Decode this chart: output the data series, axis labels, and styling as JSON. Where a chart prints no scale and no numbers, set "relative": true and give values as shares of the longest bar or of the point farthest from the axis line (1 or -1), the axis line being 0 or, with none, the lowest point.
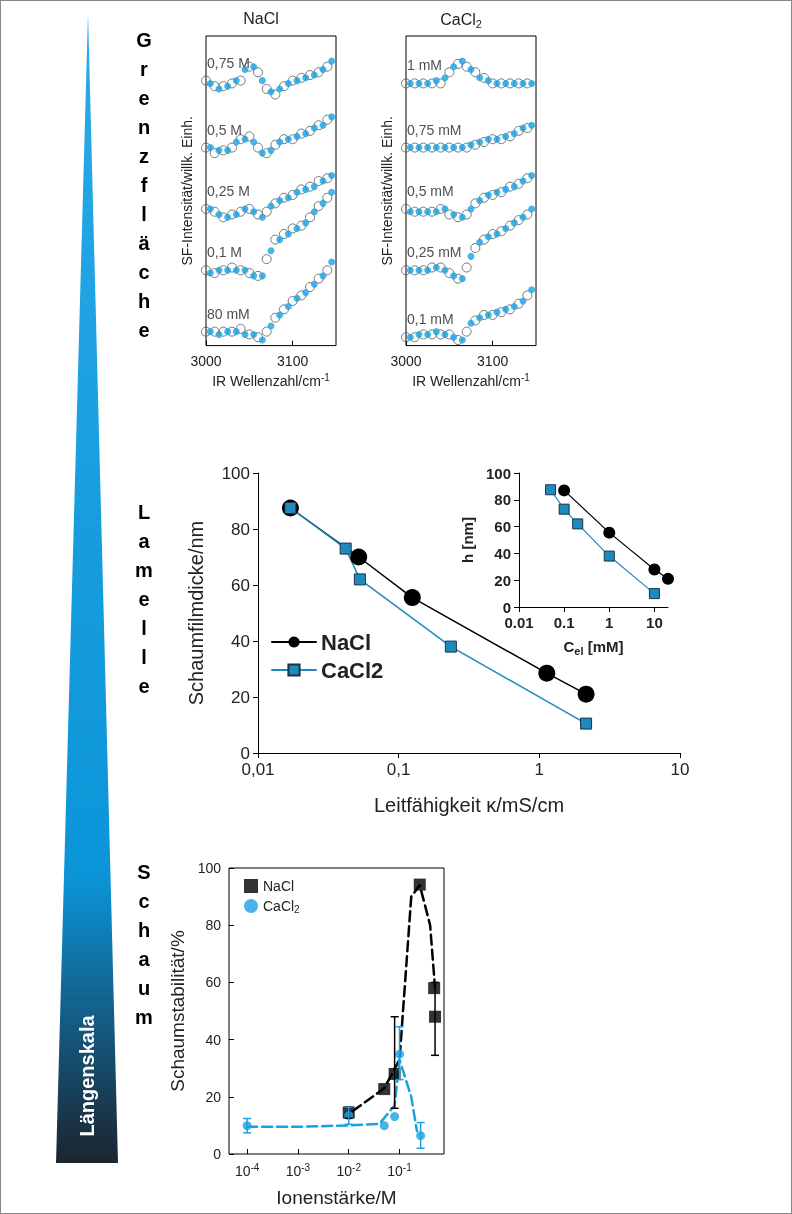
{
  "chart_data": [
    {
      "type": "other",
      "annotations": [
        "Längenskala",
        "Grenzfläche",
        "Lamelle",
        "Schaum"
      ]
    },
    {
      "type": "scatter",
      "relative": true,
      "title": "NaCl",
      "xlabel": "IR Wellenzahl/cm$^{-1}$",
      "ylabel": "SF-Intensität/willk. Einh.",
      "xlim": [
        3000,
        3150
      ],
      "xticks": [
        3000,
        3100
      ],
      "grid": false,
      "x": [
        3005,
        3015,
        3025,
        3035,
        3045,
        3055,
        3065,
        3075,
        3085,
        3095,
        3105,
        3115,
        3125,
        3135,
        3145
      ],
      "series": [
        {
          "name": "0,75 M",
          "color": "#555555",
          "marker": "circle",
          "x": [
            3000,
            3010,
            3020,
            3030,
            3040,
            3050,
            3060,
            3070,
            3080,
            3090,
            3100,
            3110,
            3120,
            3130,
            3140
          ],
          "values": [
            0.93,
            0.91,
            0.91,
            0.92,
            0.93,
            0.98,
            0.96,
            0.9,
            0.88,
            0.91,
            0.93,
            0.94,
            0.95,
            0.96,
            0.98
          ]
        },
        {
          "color": "#1ba1e2",
          "marker": "circle",
          "values": [
            0.92,
            0.9,
            0.91,
            0.93,
            0.97,
            0.98,
            0.93,
            0.89,
            0.9,
            0.92,
            0.93,
            0.94,
            0.95,
            0.97,
            1
          ]
        },
        {
          "name": "0,5 M",
          "color": "#555555",
          "marker": "circle",
          "x": [
            3000,
            3010,
            3020,
            3030,
            3040,
            3050,
            3060,
            3070,
            3080,
            3090,
            3100,
            3110,
            3120,
            3130,
            3140
          ],
          "values": [
            0.69,
            0.67,
            0.68,
            0.69,
            0.72,
            0.73,
            0.69,
            0.67,
            0.7,
            0.72,
            0.72,
            0.74,
            0.75,
            0.77,
            0.79
          ]
        },
        {
          "color": "#1ba1e2",
          "marker": "circle",
          "values": [
            0.69,
            0.68,
            0.68,
            0.71,
            0.72,
            0.71,
            0.67,
            0.68,
            0.71,
            0.72,
            0.73,
            0.74,
            0.76,
            0.77,
            0.8
          ]
        },
        {
          "name": "0,25 M",
          "color": "#555555",
          "marker": "circle",
          "x": [
            3000,
            3010,
            3020,
            3030,
            3040,
            3050,
            3060,
            3070,
            3080,
            3090,
            3100,
            3110,
            3120,
            3130,
            3140
          ],
          "values": [
            0.47,
            0.46,
            0.44,
            0.45,
            0.46,
            0.47,
            0.45,
            0.46,
            0.49,
            0.51,
            0.52,
            0.54,
            0.55,
            0.57,
            0.58
          ]
        },
        {
          "color": "#1ba1e2",
          "marker": "circle",
          "values": [
            0.47,
            0.45,
            0.44,
            0.45,
            0.47,
            0.46,
            0.44,
            0.48,
            0.5,
            0.51,
            0.53,
            0.54,
            0.55,
            0.57,
            0.59
          ]
        },
        {
          "name": "0,1 M",
          "color": "#555555",
          "marker": "circle",
          "x": [
            3000,
            3010,
            3020,
            3030,
            3040,
            3050,
            3060,
            3070,
            3080,
            3090,
            3100,
            3110,
            3120,
            3130,
            3140
          ],
          "values": [
            0.25,
            0.24,
            0.25,
            0.26,
            0.25,
            0.24,
            0.23,
            0.29,
            0.36,
            0.38,
            0.4,
            0.41,
            0.44,
            0.48,
            0.51
          ]
        },
        {
          "color": "#1ba1e2",
          "marker": "circle",
          "values": [
            0.24,
            0.25,
            0.25,
            0.25,
            0.25,
            0.23,
            0.23,
            0.32,
            0.36,
            0.38,
            0.4,
            0.42,
            0.46,
            0.49,
            0.53
          ]
        },
        {
          "name": "80 mM",
          "color": "#555555",
          "marker": "circle",
          "x": [
            3000,
            3010,
            3020,
            3030,
            3040,
            3050,
            3060,
            3070,
            3080,
            3090,
            3100,
            3110,
            3120,
            3130,
            3140
          ],
          "values": [
            0.03,
            0.03,
            0.03,
            0.03,
            0.04,
            0.02,
            0.01,
            0.03,
            0.08,
            0.11,
            0.14,
            0.16,
            0.19,
            0.22,
            0.25
          ]
        },
        {
          "color": "#1ba1e2",
          "marker": "circle",
          "values": [
            0.03,
            0.02,
            0.03,
            0.03,
            0.02,
            0.02,
            0,
            0.05,
            0.09,
            0.12,
            0.15,
            0.17,
            0.2,
            0.23,
            0.28
          ]
        }
      ]
    },
    {
      "type": "scatter",
      "relative": true,
      "title": "CaCl$_{2}$",
      "xlabel": "IR Wellenzahl/cm$^{-1}$",
      "ylabel": "SF-Intensität/willk. Einh.",
      "xlim": [
        3000,
        3150
      ],
      "xticks": [
        3000,
        3100
      ],
      "grid": false,
      "x": [
        3005,
        3015,
        3025,
        3035,
        3045,
        3055,
        3065,
        3075,
        3085,
        3095,
        3105,
        3115,
        3125,
        3135,
        3145
      ],
      "series": [
        {
          "name": "1 mM",
          "color": "#555555",
          "marker": "circle",
          "x": [
            3000,
            3010,
            3020,
            3030,
            3040,
            3050,
            3060,
            3070,
            3080,
            3090,
            3100,
            3110,
            3120,
            3130,
            3140
          ],
          "values": [
            0.92,
            0.92,
            0.92,
            0.92,
            0.92,
            0.96,
            0.99,
            0.98,
            0.96,
            0.94,
            0.92,
            0.92,
            0.92,
            0.92,
            0.92
          ]
        },
        {
          "color": "#1ba1e2",
          "marker": "circle",
          "values": [
            0.92,
            0.92,
            0.92,
            0.93,
            0.94,
            0.98,
            1,
            0.97,
            0.94,
            0.93,
            0.92,
            0.92,
            0.92,
            0.92,
            0.92
          ]
        },
        {
          "name": "0,75 mM",
          "color": "#555555",
          "marker": "circle",
          "x": [
            3000,
            3010,
            3020,
            3030,
            3040,
            3050,
            3060,
            3070,
            3080,
            3090,
            3100,
            3110,
            3120,
            3130,
            3140
          ],
          "values": [
            0.69,
            0.69,
            0.69,
            0.69,
            0.69,
            0.69,
            0.69,
            0.69,
            0.7,
            0.71,
            0.72,
            0.72,
            0.73,
            0.75,
            0.76
          ]
        },
        {
          "color": "#1ba1e2",
          "marker": "circle",
          "values": [
            0.69,
            0.69,
            0.69,
            0.69,
            0.69,
            0.69,
            0.69,
            0.7,
            0.71,
            0.72,
            0.72,
            0.73,
            0.74,
            0.76,
            0.77
          ]
        },
        {
          "name": "0,5 mM",
          "color": "#555555",
          "marker": "circle",
          "x": [
            3000,
            3010,
            3020,
            3030,
            3040,
            3050,
            3060,
            3070,
            3080,
            3090,
            3100,
            3110,
            3120,
            3130,
            3140
          ],
          "values": [
            0.47,
            0.46,
            0.46,
            0.46,
            0.47,
            0.45,
            0.44,
            0.45,
            0.49,
            0.51,
            0.52,
            0.53,
            0.55,
            0.56,
            0.58
          ]
        },
        {
          "color": "#1ba1e2",
          "marker": "circle",
          "values": [
            0.46,
            0.46,
            0.46,
            0.46,
            0.47,
            0.45,
            0.44,
            0.47,
            0.5,
            0.52,
            0.53,
            0.54,
            0.55,
            0.57,
            0.59
          ]
        },
        {
          "name": "0,25 mM",
          "color": "#555555",
          "marker": "circle",
          "x": [
            3000,
            3010,
            3020,
            3030,
            3040,
            3050,
            3060,
            3070,
            3080,
            3090,
            3100,
            3110,
            3120,
            3130,
            3140
          ],
          "values": [
            0.25,
            0.25,
            0.25,
            0.26,
            0.26,
            0.24,
            0.22,
            0.26,
            0.33,
            0.36,
            0.38,
            0.39,
            0.41,
            0.43,
            0.45
          ]
        },
        {
          "color": "#1ba1e2",
          "marker": "circle",
          "values": [
            0.25,
            0.25,
            0.25,
            0.26,
            0.25,
            0.23,
            0.22,
            0.3,
            0.35,
            0.37,
            0.38,
            0.4,
            0.42,
            0.44,
            0.47
          ]
        },
        {
          "name": "0,1 mM",
          "color": "#555555",
          "marker": "circle",
          "x": [
            3000,
            3010,
            3020,
            3030,
            3040,
            3050,
            3060,
            3070,
            3080,
            3090,
            3100,
            3110,
            3120,
            3130,
            3140
          ],
          "values": [
            0.01,
            0.01,
            0.02,
            0.02,
            0.02,
            0.02,
            0,
            0.03,
            0.07,
            0.09,
            0.09,
            0.1,
            0.11,
            0.13,
            0.16
          ]
        },
        {
          "color": "#1ba1e2",
          "marker": "circle",
          "values": [
            0.01,
            0.02,
            0.02,
            0.03,
            0.02,
            0.01,
            0,
            0.06,
            0.08,
            0.09,
            0.1,
            0.11,
            0.12,
            0.14,
            0.18
          ]
        }
      ]
    },
    {
      "type": "line",
      "log": "x",
      "xlabel": "Leitfähigkeit κ/mS/cm",
      "ylabel": "Schaumfilmdicke/nm",
      "xlim": [
        0.01,
        10
      ],
      "xticks": [
        {
          "value": 0.01,
          "label": "0,01"
        },
        {
          "value": 0.1,
          "label": "0,1"
        },
        1,
        10
      ],
      "ylim": [
        0,
        100
      ],
      "yticks": [
        0,
        20,
        40,
        60,
        80,
        100
      ],
      "grid": false,
      "legend": "left",
      "series": [
        {
          "name": "NaCl",
          "color": "#000000",
          "marker": "circle",
          "x": [
            0.017,
            0.052,
            0.125,
            1.13,
            2.15
          ],
          "values": [
            87.5,
            70,
            55.5,
            28.5,
            21
          ]
        },
        {
          "name": "CaCl2",
          "color": "#1f8ac0",
          "marker": "square",
          "x": [
            0.017,
            0.042,
            0.053,
            0.235,
            2.15
          ],
          "values": [
            87.5,
            73,
            62,
            38,
            10.5
          ]
        }
      ]
    },
    {
      "type": "line",
      "log": "x",
      "xlabel": "C$_{el}$ [mM]",
      "ylabel": "h [nm]",
      "xlim": [
        0.01,
        20
      ],
      "xticks": [
        0.01,
        0.1,
        1,
        10
      ],
      "ylim": [
        0,
        100
      ],
      "yticks": [
        0,
        20,
        40,
        60,
        80,
        100
      ],
      "grid": false,
      "series": [
        {
          "color": "#000000",
          "marker": "circle",
          "x": [
            0.1,
            1,
            10,
            20
          ],
          "values": [
            87,
            55.5,
            28,
            21
          ]
        },
        {
          "color": "#1f8ac0",
          "marker": "square",
          "x": [
            0.05,
            0.1,
            0.2,
            1,
            10
          ],
          "values": [
            87.5,
            73,
            62,
            38,
            10
          ]
        }
      ]
    },
    {
      "type": "scatter",
      "log": "x",
      "xlabel": "Ionenstärke/M",
      "ylabel": "Schaumstabilität/%",
      "xlim": [
        4.4e-05,
        0.75
      ],
      "xticks": [
        {
          "value": 0.0001,
          "label": "10$^{-4}$"
        },
        {
          "value": 0.001,
          "label": "10$^{-3}$"
        },
        {
          "value": 0.01,
          "label": "10$^{-2}$"
        },
        {
          "value": 0.1,
          "label": "10$^{-1}$"
        }
      ],
      "ylim": [
        0,
        100
      ],
      "yticks": [
        0,
        20,
        40,
        60,
        80,
        100
      ],
      "grid": false,
      "legend": "top left",
      "series": [
        {
          "type": "line",
          "color": "#000000",
          "marker": "none",
          "line_style": "dashed",
          "x": [
            0.012,
            0.05,
            0.1,
            0.17,
            0.25,
            0.4,
            0.5
          ],
          "values": [
            15,
            23,
            33,
            90,
            94,
            80,
            58
          ]
        },
        {
          "type": "line",
          "color": "#1ba1e2",
          "marker": "none",
          "line_style": "dashed",
          "x": [
            0.0001,
            0.001,
            0.01,
            0.04,
            0.08,
            0.1,
            0.17,
            0.22
          ],
          "values": [
            9.5,
            9.5,
            10,
            10.5,
            17,
            33,
            20,
            8
          ]
        },
        {
          "name": "NaCl",
          "color": "#000000",
          "marker": "square",
          "x": [
            0.01,
            0.05,
            0.08,
            0.25,
            0.48,
            0.5
          ],
          "values": [
            14.5,
            22.7,
            28,
            94.2,
            58,
            48
          ],
          "errors": [
            2,
            null,
            [
              16,
              48
            ],
            null,
            null,
            [
              34.5,
              60
            ]
          ]
        },
        {
          "name": "CaCl$_{2}$",
          "color": "#1ba1e2",
          "marker": "circle",
          "x": [
            0.0001,
            0.01,
            0.05,
            0.08,
            0.1,
            0.26
          ],
          "values": [
            9.9,
            13.4,
            9.9,
            13.1,
            34.9,
            6.4
          ],
          "errors": [
            2.5,
            3,
            null,
            null,
            [
              26,
              44.5
            ],
            [
              2,
              11
            ]
          ]
        }
      ]
    }
  ]
}
